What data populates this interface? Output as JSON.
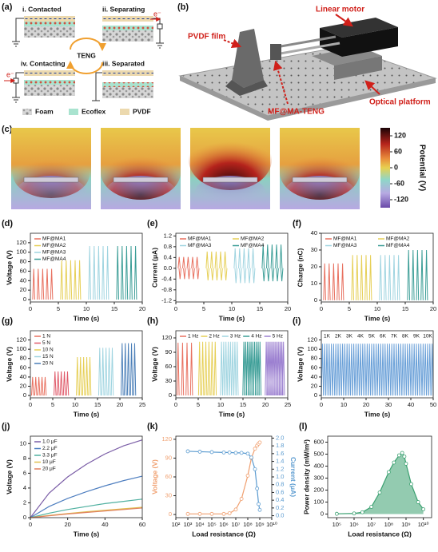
{
  "panels": {
    "a": {
      "letter": "(a)",
      "states": [
        "i. Contacted",
        "ii. Separating",
        "iii. Separated",
        "iv. Contacting"
      ],
      "center": "TENG",
      "electron": "e⁻",
      "legend": [
        "Foam",
        "Ecoflex",
        "PVDF"
      ]
    },
    "b": {
      "letter": "(b)",
      "labels": [
        "Linear motor",
        "PVDF film",
        "MF@MA-TENG",
        "Optical platform"
      ]
    },
    "c": {
      "letter": "(c)",
      "colorbar": {
        "label": "Potential (V)",
        "lim": [
          -150,
          150
        ],
        "ticks": [
          120,
          60,
          0,
          -60,
          -120
        ]
      }
    }
  },
  "chart_data": [
    {
      "type": "pulse",
      "panel": "(d)",
      "xlabel": "Time (s)",
      "ylabel": "Voltage (V)",
      "xlim": [
        0,
        20
      ],
      "xticks": [
        0,
        5,
        10,
        15,
        20
      ],
      "ylim": [
        -5,
        140
      ],
      "yticks": [
        0,
        20,
        40,
        60,
        80,
        100,
        120
      ],
      "legend": "upper left",
      "series": [
        {
          "name": "MF@MA1",
          "color": "#e8705f",
          "x": [
            0.6,
            1.4,
            2.2,
            3.0,
            3.8
          ],
          "values": [
            65,
            65,
            65,
            65,
            65
          ]
        },
        {
          "name": "MF@MA2",
          "color": "#e6cf55",
          "x": [
            5.6,
            6.4,
            7.2,
            8.0,
            8.8
          ],
          "values": [
            83,
            83,
            83,
            83,
            83
          ]
        },
        {
          "name": "MF@MA3",
          "color": "#9fd4e0",
          "x": [
            10.6,
            11.4,
            12.2,
            13.0,
            13.8
          ],
          "values": [
            113,
            113,
            113,
            113,
            113
          ]
        },
        {
          "name": "MF@MA4",
          "color": "#3a9d96",
          "x": [
            15.6,
            16.4,
            17.2,
            18.0,
            18.8
          ],
          "values": [
            113,
            113,
            113,
            113,
            113
          ]
        }
      ]
    },
    {
      "type": "pulse",
      "panel": "(e)",
      "xlabel": "Time (s)",
      "ylabel": "Current (μA)",
      "xlim": [
        0,
        20
      ],
      "xticks": [
        0,
        5,
        10,
        15,
        20
      ],
      "ylim": [
        -1.25,
        1.3
      ],
      "yticks": [
        -1.2,
        -0.8,
        -0.4,
        {
          "value": 0,
          "label": "0.0"
        },
        0.4,
        0.8,
        1.2
      ],
      "legend": "upper center",
      "series": [
        {
          "name": "MF@MA1",
          "color": "#e8705f",
          "x": [
            0.6,
            0.75,
            1.4,
            1.55,
            2.2,
            2.35,
            3.0,
            3.15,
            3.8,
            3.95
          ],
          "values": [
            0.42,
            -0.4,
            0.42,
            -0.4,
            0.42,
            -0.4,
            0.42,
            -0.4,
            0.42,
            -0.4
          ]
        },
        {
          "name": "MF@MA2",
          "color": "#e6cf55",
          "x": [
            5.6,
            5.75,
            6.4,
            6.55,
            7.2,
            7.35,
            8.0,
            8.15,
            8.8,
            8.95
          ],
          "values": [
            0.62,
            -0.45,
            0.62,
            -0.45,
            0.62,
            -0.45,
            0.62,
            -0.45,
            0.62,
            -0.45
          ]
        },
        {
          "name": "MF@MA3",
          "color": "#9fd4e0",
          "x": [
            10.6,
            10.75,
            11.4,
            11.55,
            12.2,
            12.35,
            13.0,
            13.15,
            13.8,
            13.95
          ],
          "values": [
            0.74,
            -0.55,
            0.74,
            -0.55,
            0.74,
            -0.55,
            0.74,
            -0.55,
            0.74,
            -0.55
          ]
        },
        {
          "name": "MF@MA4",
          "color": "#3a9d96",
          "x": [
            15.6,
            15.75,
            16.4,
            16.55,
            17.2,
            17.35,
            18.0,
            18.15,
            18.8,
            18.95
          ],
          "values": [
            0.88,
            -0.48,
            0.88,
            -0.48,
            0.88,
            -0.48,
            0.88,
            -0.48,
            0.88,
            -0.48
          ]
        }
      ]
    },
    {
      "type": "pulse",
      "panel": "(f)",
      "xlabel": "Time (s)",
      "ylabel": "Charge (nC)",
      "xlim": [
        0,
        20
      ],
      "xticks": [
        0,
        5,
        10,
        15,
        20
      ],
      "ylim": [
        -1,
        40
      ],
      "yticks": [
        0,
        10,
        20,
        30,
        40
      ],
      "legend": "upper left",
      "series": [
        {
          "name": "MF@MA1",
          "color": "#e8705f",
          "x": [
            0.6,
            1.4,
            2.2,
            3.0,
            3.8
          ],
          "values": [
            22,
            22,
            22,
            22,
            22
          ]
        },
        {
          "name": "MF@MA2",
          "color": "#e6cf55",
          "x": [
            5.6,
            6.4,
            7.2,
            8.0,
            8.8
          ],
          "values": [
            27,
            27,
            27,
            27,
            27
          ]
        },
        {
          "name": "MF@MA3",
          "color": "#9fd4e0",
          "x": [
            10.6,
            11.4,
            12.2,
            13.0,
            13.8
          ],
          "values": [
            27,
            27,
            27,
            27,
            27
          ]
        },
        {
          "name": "MF@MA4",
          "color": "#3a9d96",
          "x": [
            15.6,
            16.4,
            17.2,
            18.0,
            18.8
          ],
          "values": [
            30,
            30,
            30,
            30,
            30
          ]
        }
      ]
    },
    {
      "type": "pulse",
      "panel": "(g)",
      "xlabel": "Time (s)",
      "ylabel": "Voltage (V)",
      "xlim": [
        0,
        25
      ],
      "xticks": [
        0,
        5,
        10,
        15,
        20,
        25
      ],
      "ylim": [
        -5,
        140
      ],
      "yticks": [
        0,
        20,
        40,
        60,
        80,
        100,
        120
      ],
      "legend": "upper left",
      "series": [
        {
          "name": "1 N",
          "color": "#e8705f",
          "x": [
            0.5,
            1.2,
            1.9,
            2.6,
            3.3
          ],
          "values": [
            40,
            40,
            40,
            40,
            40
          ]
        },
        {
          "name": "5 N",
          "color": "#e05a6a",
          "x": [
            5.5,
            6.2,
            6.9,
            7.6,
            8.3
          ],
          "values": [
            52,
            52,
            52,
            52,
            52
          ]
        },
        {
          "name": "10 N",
          "color": "#e6cf55",
          "x": [
            10.5,
            11.2,
            11.9,
            12.6,
            13.3
          ],
          "values": [
            83,
            83,
            83,
            83,
            83
          ]
        },
        {
          "name": "15 N",
          "color": "#9fd4e0",
          "x": [
            15.5,
            16.2,
            16.9,
            17.6,
            18.3
          ],
          "values": [
            103,
            103,
            103,
            103,
            103
          ]
        },
        {
          "name": "20 N",
          "color": "#4b7fb8",
          "x": [
            20.5,
            21.2,
            21.9,
            22.6,
            23.3
          ],
          "values": [
            113,
            113,
            113,
            113,
            113
          ]
        }
      ]
    },
    {
      "type": "pulse",
      "panel": "(h)",
      "xlabel": "Time (s)",
      "ylabel": "Voltage (V)",
      "xlim": [
        0,
        25
      ],
      "xticks": [
        0,
        5,
        10,
        15,
        20,
        25
      ],
      "ylim": [
        -5,
        135
      ],
      "yticks": [
        0,
        30,
        60,
        90,
        120
      ],
      "legend": "upper center",
      "series": [
        {
          "name": "1 Hz",
          "color": "#e8705f",
          "x": [
            0.5,
            1.5,
            2.5,
            3.5
          ],
          "values": [
            110,
            110,
            110,
            110
          ]
        },
        {
          "name": "2 Hz",
          "color": "#e6cf55",
          "x": [
            5.3,
            6.0,
            6.7,
            7.4,
            8.1,
            8.8
          ],
          "values": [
            112,
            112,
            112,
            112,
            112,
            112
          ]
        },
        {
          "name": "3 Hz",
          "color": "#9fd4e0",
          "x": [
            10.2,
            10.7,
            11.2,
            11.7,
            12.2,
            12.7,
            13.2,
            13.7
          ],
          "values": [
            112,
            112,
            112,
            112,
            112,
            112,
            112,
            112
          ]
        },
        {
          "name": "4 Hz",
          "color": "#3a9d96",
          "x": [
            15.2,
            15.6,
            16.0,
            16.4,
            16.8,
            17.2,
            17.6,
            18.0,
            18.4,
            18.8
          ],
          "values": [
            112,
            112,
            112,
            112,
            112,
            112,
            112,
            112,
            112,
            112
          ]
        },
        {
          "name": "5 Hz",
          "color": "#9b7fd0",
          "x": [
            20.2,
            20.55,
            20.9,
            21.25,
            21.6,
            21.95,
            22.3,
            22.65,
            23.0,
            23.35,
            23.7,
            24.05
          ],
          "values": [
            112,
            112,
            112,
            112,
            112,
            112,
            112,
            112,
            112,
            112,
            112,
            112
          ]
        }
      ]
    },
    {
      "type": "pulse",
      "panel": "(i)",
      "xlabel": "Time (s)",
      "ylabel": "Voltage (V)",
      "xlim": [
        0,
        50
      ],
      "xticks": [
        0,
        10,
        20,
        30,
        40,
        50
      ],
      "ylim": [
        -5,
        140
      ],
      "yticks": [
        0,
        20,
        40,
        60,
        80,
        100,
        120
      ],
      "annotations": [
        "1K",
        "2K",
        "3K",
        "4K",
        "5K",
        "6K",
        "7K",
        "8K",
        "9K",
        "10K"
      ],
      "series": [
        {
          "color": "#6aa0d8",
          "x": [
            0.5,
            1.5,
            2.5,
            3.5,
            4.5,
            5.5,
            6.5,
            7.5,
            8.5,
            9.5,
            10.5,
            11.5,
            12.5,
            13.5,
            14.5,
            15.5,
            16.5,
            17.5,
            18.5,
            19.5,
            20.5,
            21.5,
            22.5,
            23.5,
            24.5,
            25.5,
            26.5,
            27.5,
            28.5,
            29.5,
            30.5,
            31.5,
            32.5,
            33.5,
            34.5,
            35.5,
            36.5,
            37.5,
            38.5,
            39.5,
            40.5,
            41.5,
            42.5,
            43.5,
            44.5,
            45.5,
            46.5,
            47.5,
            48.5,
            49.5
          ],
          "values": [
            112,
            112,
            112,
            112,
            112,
            112,
            112,
            112,
            112,
            112,
            112,
            112,
            112,
            112,
            112,
            112,
            112,
            112,
            112,
            112,
            112,
            112,
            112,
            112,
            112,
            112,
            112,
            112,
            112,
            112,
            112,
            112,
            112,
            112,
            112,
            112,
            112,
            112,
            112,
            112,
            112,
            112,
            112,
            112,
            112,
            112,
            112,
            112,
            112,
            112
          ]
        }
      ]
    },
    {
      "type": "line",
      "panel": "(j)",
      "xlabel": "Time (s)",
      "ylabel": "Voltage (V)",
      "x": [
        0,
        10,
        20,
        30,
        40,
        50,
        60
      ],
      "xlim": [
        0,
        60
      ],
      "xticks": [
        0,
        20,
        40,
        60
      ],
      "ylim": [
        0,
        11
      ],
      "yticks": [
        0,
        2,
        4,
        6,
        8,
        10
      ],
      "legend": "upper left",
      "series": [
        {
          "name": "1.0 μF",
          "color": "#7b5ea7",
          "values": [
            0,
            3.3,
            5.5,
            7.2,
            8.6,
            9.7,
            10.5
          ]
        },
        {
          "name": "2.2 μF",
          "color": "#4f7fc0",
          "values": [
            0,
            1.5,
            2.6,
            3.5,
            4.3,
            5.0,
            5.6
          ]
        },
        {
          "name": "3.3 μF",
          "color": "#4fb0a0",
          "values": [
            0,
            0.6,
            1.1,
            1.5,
            1.9,
            2.2,
            2.5
          ]
        },
        {
          "name": "10 μF",
          "color": "#e0c050",
          "values": [
            0,
            0.3,
            0.55,
            0.8,
            1.0,
            1.2,
            1.4
          ]
        },
        {
          "name": "20 μF",
          "color": "#e08060",
          "values": [
            0,
            0.25,
            0.5,
            0.7,
            0.9,
            1.1,
            1.3
          ]
        }
      ]
    },
    {
      "type": "line",
      "panel": "(k)",
      "xlabel": "Load resistance (Ω)",
      "ylabel": "Voltage (V)",
      "y2label": "Current (μA)",
      "xlog": true,
      "markers": true,
      "x": [
        1000,
        10000,
        100000,
        1000000,
        3000000,
        10000000,
        30000000,
        100000000,
        200000000,
        400000000,
        600000000,
        800000000,
        1000000000
      ],
      "xlim": [
        100,
        10000000000
      ],
      "xticks": [
        {
          "value": 100,
          "label": "10²"
        },
        {
          "value": 1000,
          "label": "10³"
        },
        {
          "value": 10000,
          "label": "10⁴"
        },
        {
          "value": 100000,
          "label": "10⁵"
        },
        {
          "value": 1000000,
          "label": "10⁶"
        },
        {
          "value": 10000000,
          "label": "10⁷"
        },
        {
          "value": 100000000,
          "label": "10⁸"
        },
        {
          "value": 1000000000,
          "label": "10⁹"
        },
        {
          "value": 10000000000,
          "label": "10¹⁰"
        }
      ],
      "ylim": [
        -5,
        125
      ],
      "yticks": [
        0,
        30,
        60,
        90,
        120
      ],
      "y2lim": [
        -0.05,
        2.05
      ],
      "y2ticks": [
        {
          "value": 0,
          "label": "0.0"
        },
        0.2,
        0.4,
        0.6,
        0.8,
        {
          "value": 1,
          "label": "1.0"
        },
        1.2,
        1.4,
        1.6,
        1.8,
        {
          "value": 2,
          "label": "2.0"
        }
      ],
      "series": [
        {
          "color": "#f0a070",
          "values": [
            1,
            1,
            1,
            1,
            2,
            8,
            25,
            62,
            90,
            105,
            110,
            113,
            115
          ]
        },
        {
          "color": "#5b9bd0",
          "axis": "y2",
          "values": [
            1.66,
            1.65,
            1.64,
            1.63,
            1.63,
            1.62,
            1.62,
            1.6,
            1.5,
            1.2,
            0.7,
            0.3,
            0.15
          ]
        }
      ]
    },
    {
      "type": "area",
      "panel": "(l)",
      "xlabel": "Load resistance (Ω)",
      "ylabel": "Power density (mW/m²)",
      "xlog": true,
      "markers": true,
      "x": [
        100000,
        1000000,
        3000000,
        10000000,
        30000000,
        100000000,
        200000000,
        400000000,
        600000000,
        800000000,
        1000000000,
        2000000000,
        5000000000,
        10000000000
      ],
      "xlim": [
        30000,
        30000000000
      ],
      "xticks": [
        {
          "value": 100000,
          "label": "10⁵"
        },
        {
          "value": 1000000,
          "label": "10⁶"
        },
        {
          "value": 10000000,
          "label": "10⁷"
        },
        {
          "value": 100000000,
          "label": "10⁸"
        },
        {
          "value": 1000000000,
          "label": "10⁹"
        },
        {
          "value": 10000000000,
          "label": "10¹⁰"
        }
      ],
      "ylim": [
        -30,
        650
      ],
      "yticks": [
        0,
        100,
        200,
        300,
        400,
        500,
        600
      ],
      "series": [
        {
          "color": "#3aa070",
          "values": [
            2,
            5,
            15,
            60,
            180,
            350,
            430,
            490,
            510,
            480,
            420,
            250,
            100,
            40
          ]
        }
      ]
    }
  ]
}
